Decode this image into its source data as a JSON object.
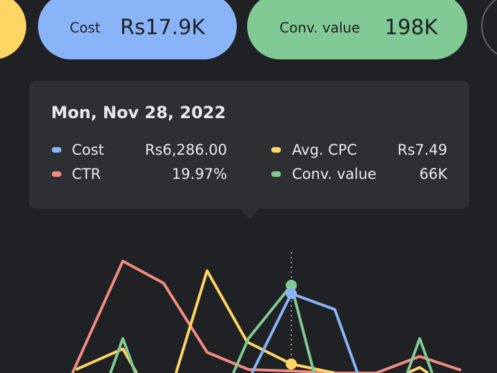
{
  "pills": [
    {
      "label": "Cost",
      "value": "Rs17.9K"
    },
    {
      "label": "Conv. value",
      "value": "198K"
    }
  ],
  "tooltip": {
    "date": "Mon, Nov 28, 2022",
    "items": [
      {
        "label": "Cost",
        "value": "Rs6,286.00"
      },
      {
        "label": "CTR",
        "value": "19.97%"
      },
      {
        "label": "Avg. CPC",
        "value": "Rs7.49"
      },
      {
        "label": "Conv. value",
        "value": "66K"
      }
    ]
  }
}
